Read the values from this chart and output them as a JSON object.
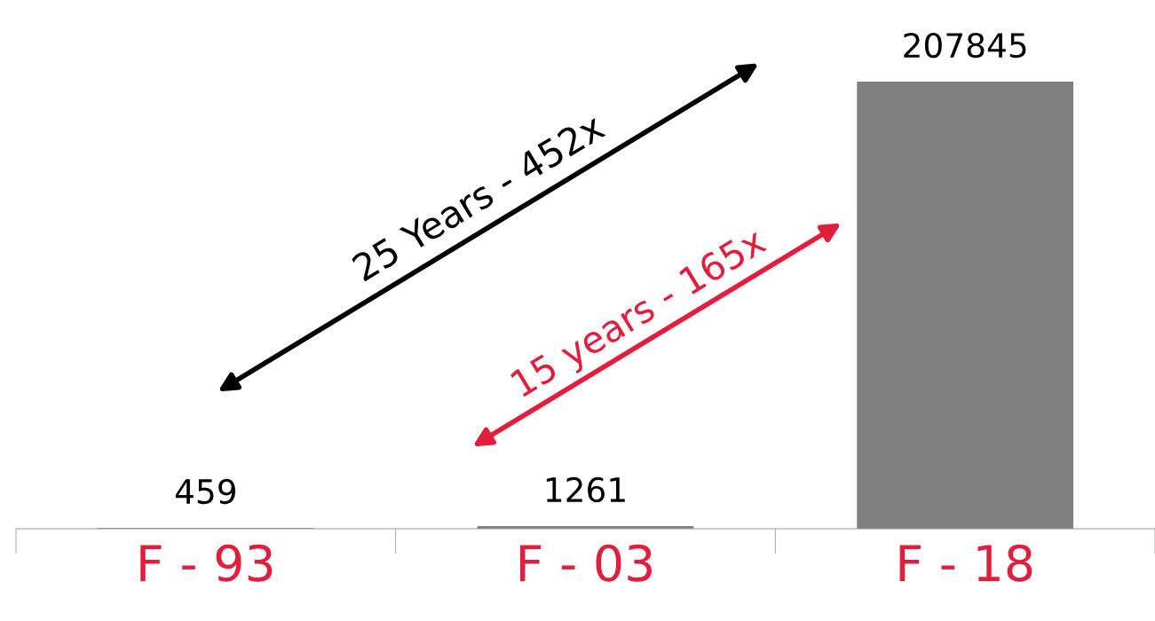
{
  "chart_data": {
    "type": "bar",
    "categories": [
      "F - 93",
      "F - 03",
      "F - 18"
    ],
    "values": [
      459,
      1261,
      207845
    ],
    "color": "#808080",
    "data_labels": true,
    "grid": false,
    "legend": false,
    "tick_labels": "x",
    "annotations": [
      "25 Years - 452x",
      "15 years - 165x"
    ]
  }
}
